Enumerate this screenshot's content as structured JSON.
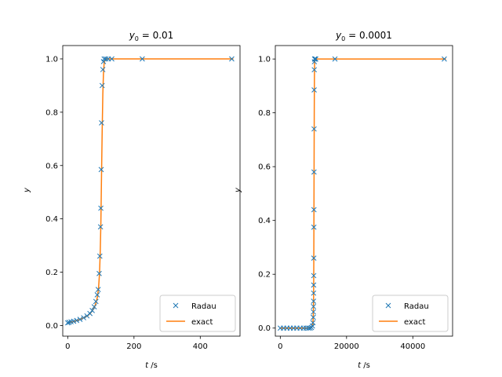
{
  "colors": {
    "radau": "#1f77b4",
    "exact": "#ff7f0e"
  },
  "chart_data": [
    {
      "type": "line",
      "title_var": "y",
      "title_sub": "0",
      "title_rest": " = 0.01",
      "xlabel_var": "t",
      "xlabel_unit": " /s",
      "ylabel": "y",
      "xlim": [
        -15,
        520
      ],
      "ylim": [
        -0.04,
        1.05
      ],
      "xticks": [
        0,
        200,
        400
      ],
      "xtick_labels": [
        "0",
        "200",
        "400"
      ],
      "yticks": [
        0.0,
        0.2,
        0.4,
        0.6,
        0.8,
        1.0
      ],
      "ytick_labels": [
        "0.0",
        "0.2",
        "0.4",
        "0.6",
        "0.8",
        "1.0"
      ],
      "legend_position": "lower-right",
      "series": [
        {
          "name": "Radau",
          "marker": "x",
          "x": [
            0,
            4,
            10,
            18,
            27,
            37,
            48,
            58,
            67,
            74,
            80,
            85,
            89,
            92,
            95,
            97,
            99,
            100,
            101,
            102,
            104,
            106,
            108,
            110,
            115,
            122,
            133,
            225,
            495
          ],
          "y": [
            0.01,
            0.012,
            0.014,
            0.016,
            0.019,
            0.023,
            0.029,
            0.036,
            0.045,
            0.056,
            0.07,
            0.09,
            0.115,
            0.135,
            0.195,
            0.26,
            0.37,
            0.44,
            0.585,
            0.76,
            0.9,
            0.96,
            0.99,
            1.0,
            1.0,
            1.0,
            1.0,
            1.0,
            1.0
          ]
        },
        {
          "name": "exact",
          "x": [
            0,
            20,
            40,
            60,
            70,
            80,
            85,
            90,
            93,
            96,
            98,
            100,
            102,
            104,
            106,
            108,
            110,
            112,
            115,
            120,
            130,
            150,
            200,
            300,
            500
          ],
          "y": [
            0.01,
            0.015,
            0.024,
            0.036,
            0.048,
            0.067,
            0.083,
            0.11,
            0.14,
            0.195,
            0.27,
            0.38,
            0.56,
            0.73,
            0.87,
            0.95,
            0.985,
            0.995,
            0.999,
            1.0,
            1.0,
            1.0,
            1.0,
            1.0,
            1.0
          ]
        }
      ]
    },
    {
      "type": "line",
      "title_var": "y",
      "title_sub": "0",
      "title_rest": " = 0.0001",
      "xlabel_var": "t",
      "xlabel_unit": " /s",
      "ylabel": "y",
      "xlim": [
        -1500,
        52000
      ],
      "ylim": [
        -0.03,
        1.05
      ],
      "xticks": [
        0,
        20000,
        40000
      ],
      "xtick_labels": [
        "0",
        "20000",
        "40000"
      ],
      "yticks": [
        0.0,
        0.2,
        0.4,
        0.6,
        0.8,
        1.0
      ],
      "ytick_labels": [
        "0.0",
        "0.2",
        "0.4",
        "0.6",
        "0.8",
        "1.0"
      ],
      "legend_position": "lower-right",
      "series": [
        {
          "name": "Radau",
          "marker": "x",
          "x": [
            0,
            1000,
            2000,
            3000,
            4000,
            5000,
            6000,
            7000,
            7800,
            8500,
            9000,
            9400,
            9700,
            9850,
            9950,
            10000,
            10020,
            10040,
            10060,
            10080,
            10100,
            10120,
            10140,
            10160,
            10180,
            10200,
            10230,
            10260,
            10300,
            10350,
            10400,
            10500,
            10700,
            16500,
            49500
          ],
          "y": [
            0.0,
            0.0,
            0.0,
            0.0,
            0.0,
            0.0,
            0.0,
            0.0,
            0.0,
            0.0,
            0.0,
            0.002,
            0.008,
            0.02,
            0.04,
            0.06,
            0.08,
            0.1,
            0.13,
            0.16,
            0.195,
            0.26,
            0.375,
            0.44,
            0.58,
            0.74,
            0.885,
            0.96,
            0.99,
            1.0,
            1.0,
            1.0,
            1.0,
            1.0,
            1.0
          ]
        },
        {
          "name": "exact",
          "x": [
            0,
            5000,
            8000,
            9000,
            9500,
            9800,
            9950,
            10050,
            10100,
            10150,
            10200,
            10250,
            10300,
            10350,
            10400,
            10500,
            11000,
            20000,
            50000
          ],
          "y": [
            0.0,
            0.0,
            0.0,
            0.001,
            0.003,
            0.012,
            0.04,
            0.1,
            0.195,
            0.38,
            0.6,
            0.8,
            0.93,
            0.98,
            0.995,
            1.0,
            1.0,
            1.0,
            1.0
          ]
        }
      ]
    }
  ]
}
